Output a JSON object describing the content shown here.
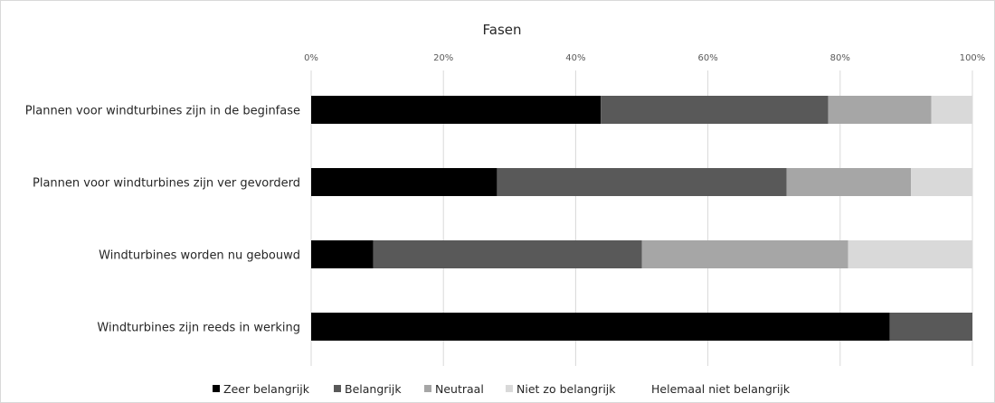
{
  "chart_data": {
    "type": "bar",
    "orientation": "horizontal",
    "stacked": "percent",
    "title": "Fasen",
    "xlim": [
      0,
      100
    ],
    "ticks": [
      "0%",
      "20%",
      "40%",
      "60%",
      "80%",
      "100%"
    ],
    "grid": true,
    "legend_position": "bottom",
    "categories": [
      "Plannen voor windturbines zijn in de beginfase",
      "Plannen voor windturbines zijn ver gevorderd",
      "Windturbines worden nu gebouwd",
      "Windturbines zijn reeds in werking"
    ],
    "series": [
      {
        "name": "Zeer belangrijk",
        "color": "#000000",
        "values": [
          43.8,
          28.1,
          9.4,
          87.5
        ]
      },
      {
        "name": "Belangrijk",
        "color": "#595959",
        "values": [
          34.4,
          43.8,
          40.6,
          12.5
        ]
      },
      {
        "name": "Neutraal",
        "color": "#a6a6a6",
        "values": [
          15.6,
          18.8,
          31.2,
          0
        ]
      },
      {
        "name": "Niet zo belangrijk",
        "color": "#d9d9d9",
        "values": [
          6.2,
          9.3,
          18.8,
          0
        ]
      },
      {
        "name": "Helemaal niet belangrijk",
        "color": "#ffffff",
        "values": [
          0,
          0,
          0,
          0
        ]
      }
    ]
  }
}
